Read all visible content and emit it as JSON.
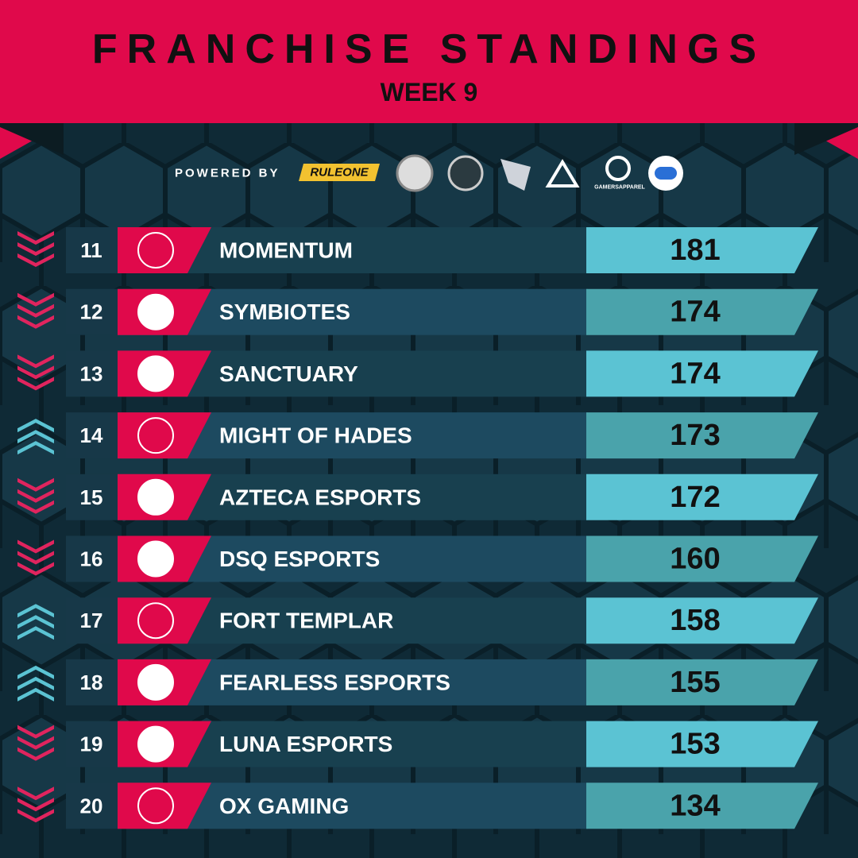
{
  "header": {
    "title": "FRANCHISE STANDINGS",
    "subtitle": "WEEK 9"
  },
  "sponsors": {
    "label": "POWERED BY",
    "brands": [
      "RULEONE",
      "GAMERSAPPAREL"
    ]
  },
  "standings": {
    "rows": [
      {
        "rank": 11,
        "team": "MOMENTUM",
        "points": 181,
        "trend": "down"
      },
      {
        "rank": 12,
        "team": "SYMBIOTES",
        "points": 174,
        "trend": "down"
      },
      {
        "rank": 13,
        "team": "SANCTUARY",
        "points": 174,
        "trend": "down"
      },
      {
        "rank": 14,
        "team": "MIGHT OF HADES",
        "points": 173,
        "trend": "up"
      },
      {
        "rank": 15,
        "team": "AZTECA ESPORTS",
        "points": 172,
        "trend": "down"
      },
      {
        "rank": 16,
        "team": "DSQ ESPORTS",
        "points": 160,
        "trend": "down"
      },
      {
        "rank": 17,
        "team": "FORT TEMPLAR",
        "points": 158,
        "trend": "up"
      },
      {
        "rank": 18,
        "team": "FEARLESS ESPORTS",
        "points": 155,
        "trend": "up"
      },
      {
        "rank": 19,
        "team": "LUNA ESPORTS",
        "points": 153,
        "trend": "down"
      },
      {
        "rank": 20,
        "team": "OX GAMING",
        "points": 134,
        "trend": "down"
      }
    ]
  }
}
